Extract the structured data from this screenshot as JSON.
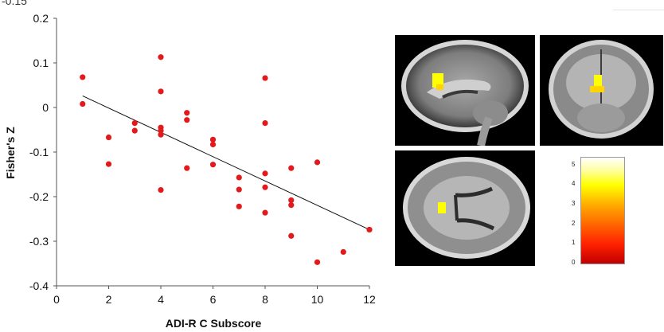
{
  "clipped_label": "-0.15",
  "colorbar": {
    "ticks": [
      "5",
      "4",
      "3",
      "2",
      "1",
      "0"
    ],
    "max": 5.4
  },
  "colors": {
    "points": "#e31a1c",
    "line": "#111111",
    "background": "#ffffff"
  },
  "chart_data": {
    "type": "scatter",
    "xlabel": "ADI-R C Subscore",
    "ylabel": "Fisher's Z",
    "xlim": [
      0,
      12
    ],
    "ylim": [
      -0.4,
      0.2
    ],
    "xticks": [
      "0",
      "2",
      "4",
      "6",
      "8",
      "10",
      "12"
    ],
    "yticks": [
      "0.2",
      "0.1",
      "0",
      "-0.1",
      "-0.2",
      "-0.3",
      "-0.4"
    ],
    "points": [
      [
        1,
        0.068
      ],
      [
        1,
        0.008
      ],
      [
        2,
        -0.067
      ],
      [
        2,
        -0.127
      ],
      [
        3,
        -0.035
      ],
      [
        3,
        -0.052
      ],
      [
        4,
        0.113
      ],
      [
        4,
        0.036
      ],
      [
        4,
        -0.045
      ],
      [
        4,
        -0.052
      ],
      [
        4,
        -0.061
      ],
      [
        4,
        -0.185
      ],
      [
        5,
        -0.012
      ],
      [
        5,
        -0.028
      ],
      [
        5,
        -0.136
      ],
      [
        6,
        -0.072
      ],
      [
        6,
        -0.083
      ],
      [
        6,
        -0.128
      ],
      [
        7,
        -0.157
      ],
      [
        7,
        -0.184
      ],
      [
        7,
        -0.222
      ],
      [
        8,
        0.066
      ],
      [
        8,
        -0.035
      ],
      [
        8,
        -0.148
      ],
      [
        8,
        -0.179
      ],
      [
        8,
        -0.236
      ],
      [
        9,
        -0.136
      ],
      [
        9,
        -0.208
      ],
      [
        9,
        -0.219
      ],
      [
        9,
        -0.288
      ],
      [
        10,
        -0.123
      ],
      [
        10,
        -0.347
      ],
      [
        11,
        -0.324
      ],
      [
        12,
        -0.274
      ]
    ],
    "trendline": {
      "x": [
        1,
        12
      ],
      "y": [
        0.026,
        -0.274
      ]
    },
    "grid": false,
    "legend": "none"
  }
}
